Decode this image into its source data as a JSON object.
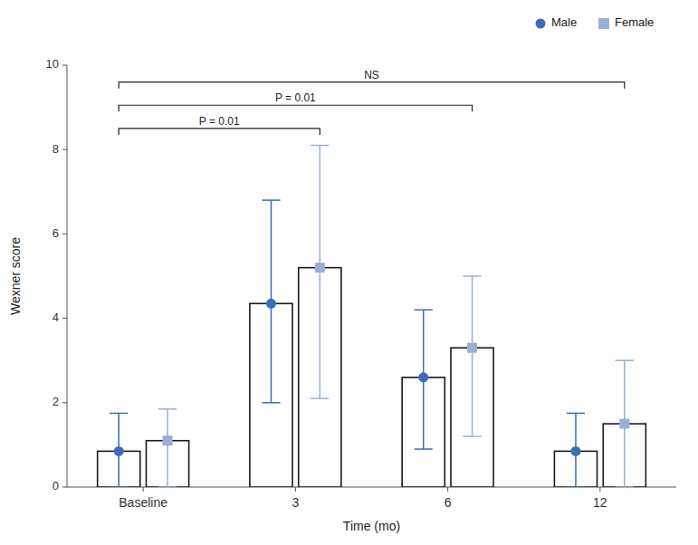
{
  "chart_data": {
    "type": "bar",
    "xlabel": "Time (mo)",
    "ylabel": "Wexner score",
    "categories": [
      "Baseline",
      "3",
      "6",
      "12"
    ],
    "color": "#1a1a1a",
    "series": [
      {
        "name": "Male",
        "color": "#3B6CB5",
        "marker": "circle",
        "values": [
          0.85,
          4.35,
          2.6,
          0.85
        ],
        "lower": [
          0.0,
          2.0,
          0.9,
          0.0
        ],
        "upper": [
          1.75,
          6.8,
          4.2,
          1.75
        ]
      },
      {
        "name": "Female",
        "color": "#9BAFD4",
        "marker": "square",
        "values": [
          1.1,
          5.2,
          3.3,
          1.5
        ],
        "lower": [
          0.0,
          2.1,
          1.2,
          0.0
        ],
        "upper": [
          1.85,
          8.1,
          5.0,
          3.0
        ]
      }
    ],
    "ylim": [
      0,
      10
    ],
    "yticks": [
      0,
      2,
      4,
      6,
      8,
      10
    ],
    "grid": false,
    "legend": "upper right",
    "annotations": [
      {
        "text": "NS",
        "y": 9.6,
        "from": "Baseline",
        "to": "12"
      },
      {
        "text": "P = 0.01",
        "y": 9.05,
        "from": "Baseline",
        "to": "6"
      },
      {
        "text": "P = 0.01",
        "y": 8.5,
        "from": "Baseline",
        "to": "3"
      }
    ]
  }
}
